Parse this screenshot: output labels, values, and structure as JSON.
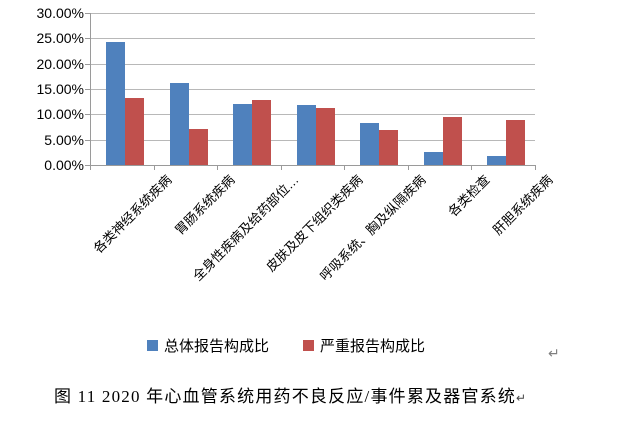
{
  "chart_data": {
    "type": "bar",
    "title": "",
    "categories": [
      "各类神经系统疾病",
      "胃肠系统疾病",
      "全身性疾病及给药部位…",
      "皮肤及皮下组织类疾病",
      "呼吸系统、胸及纵隔疾病",
      "各类检查",
      "肝胆系统疾病"
    ],
    "series": [
      {
        "name": "总体报告构成比",
        "color": "#4F81BD",
        "values": [
          24.3,
          16.2,
          12.1,
          11.9,
          8.3,
          2.5,
          1.7
        ]
      },
      {
        "name": "严重报告构成比",
        "color": "#C0504D",
        "values": [
          13.3,
          7.1,
          12.9,
          11.2,
          7.0,
          9.5,
          8.9
        ]
      }
    ],
    "ylim": [
      0,
      30
    ],
    "ytick_step": 5,
    "ytick_labels": [
      "30.00%",
      "25.00%",
      "20.00%",
      "15.00%",
      "10.00%",
      "5.00%",
      "0.00%"
    ],
    "grid": true,
    "legend_position": "bottom"
  },
  "caption": {
    "text": "图 11  2020 年心血管系统用药不良反应/事件累及器官系统",
    "return_mark": "↵"
  },
  "marks": {
    "chart_return": "↵"
  },
  "colors": {
    "series_total": "#4F81BD",
    "series_serious": "#C0504D",
    "gridline": "#b8b8b8",
    "axis": "#9a9a9a",
    "paragraph_mark": "#808080",
    "text": "#000000"
  }
}
